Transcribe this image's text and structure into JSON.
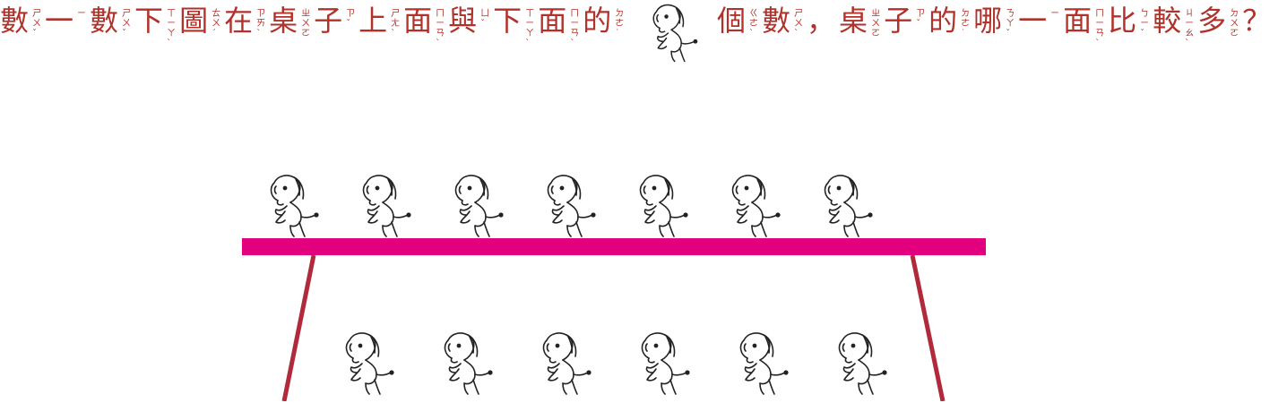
{
  "question": {
    "part1": "數一數下圖在桌子上面與下面的",
    "part2": "個數，桌子的哪一面比較多？",
    "bopomofo": {
      "part1": [
        "ㄕㄨˇ",
        "ㄧ",
        "ㄕㄨˇ",
        "ㄒㄧㄚˋ",
        "ㄊㄨˊ",
        "ㄗㄞˋ",
        "ㄓㄨㄛ",
        "ㄗˇ",
        "ㄕㄤˋ",
        "ㄇㄧㄢˋ",
        "ㄩˇ",
        "ㄒㄧㄚˋ",
        "ㄇㄧㄢˋ",
        "ㄉㄜ˙"
      ],
      "part2": [
        "ㄍㄜˋ",
        "ㄕㄨˋ",
        "",
        "ㄓㄨㄛ",
        "ㄗˇ",
        "ㄉㄜ˙",
        "ㄋㄚˇ",
        "ㄧ",
        "ㄇㄧㄢˋ",
        "ㄅㄧˇ",
        "ㄐㄧㄠˋ",
        "ㄉㄨㄛ",
        ""
      ]
    }
  },
  "icon": "horse-icon",
  "counts": {
    "on_table": 7,
    "under_table": 6
  },
  "colors": {
    "text": "#b1312b",
    "tabletop": "#e3007f",
    "legs": "#b02a3c"
  }
}
